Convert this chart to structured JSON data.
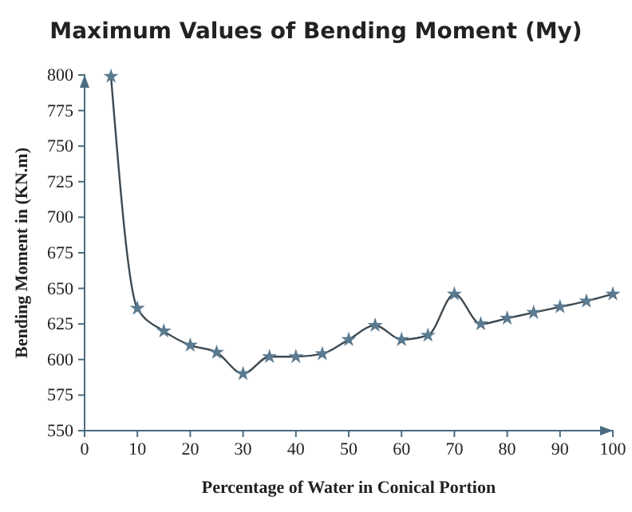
{
  "chart_data": {
    "type": "line",
    "title": "Maximum Values of Bending Moment (My)",
    "xlabel": "Percentage of Water in Conical Portion",
    "ylabel": "Bending Moment in (KN.m)",
    "x": [
      5,
      10,
      15,
      20,
      25,
      30,
      35,
      40,
      45,
      50,
      55,
      60,
      65,
      70,
      75,
      80,
      85,
      90,
      95,
      100
    ],
    "series": [
      {
        "color": "#3f4a52",
        "values": [
          799,
          636,
          620,
          610,
          605,
          590,
          602,
          602,
          604,
          614,
          624,
          614,
          617,
          646,
          625,
          629,
          633,
          637,
          641,
          646
        ]
      }
    ],
    "xlim": [
      0,
      100
    ],
    "xticks": [
      0,
      10,
      20,
      30,
      40,
      50,
      60,
      70,
      80,
      90,
      100
    ],
    "ylim": [
      550,
      800
    ],
    "yticks": [
      550,
      575,
      600,
      625,
      650,
      675,
      700,
      725,
      750,
      775,
      800
    ],
    "marker": "star",
    "line_style": "solid"
  }
}
